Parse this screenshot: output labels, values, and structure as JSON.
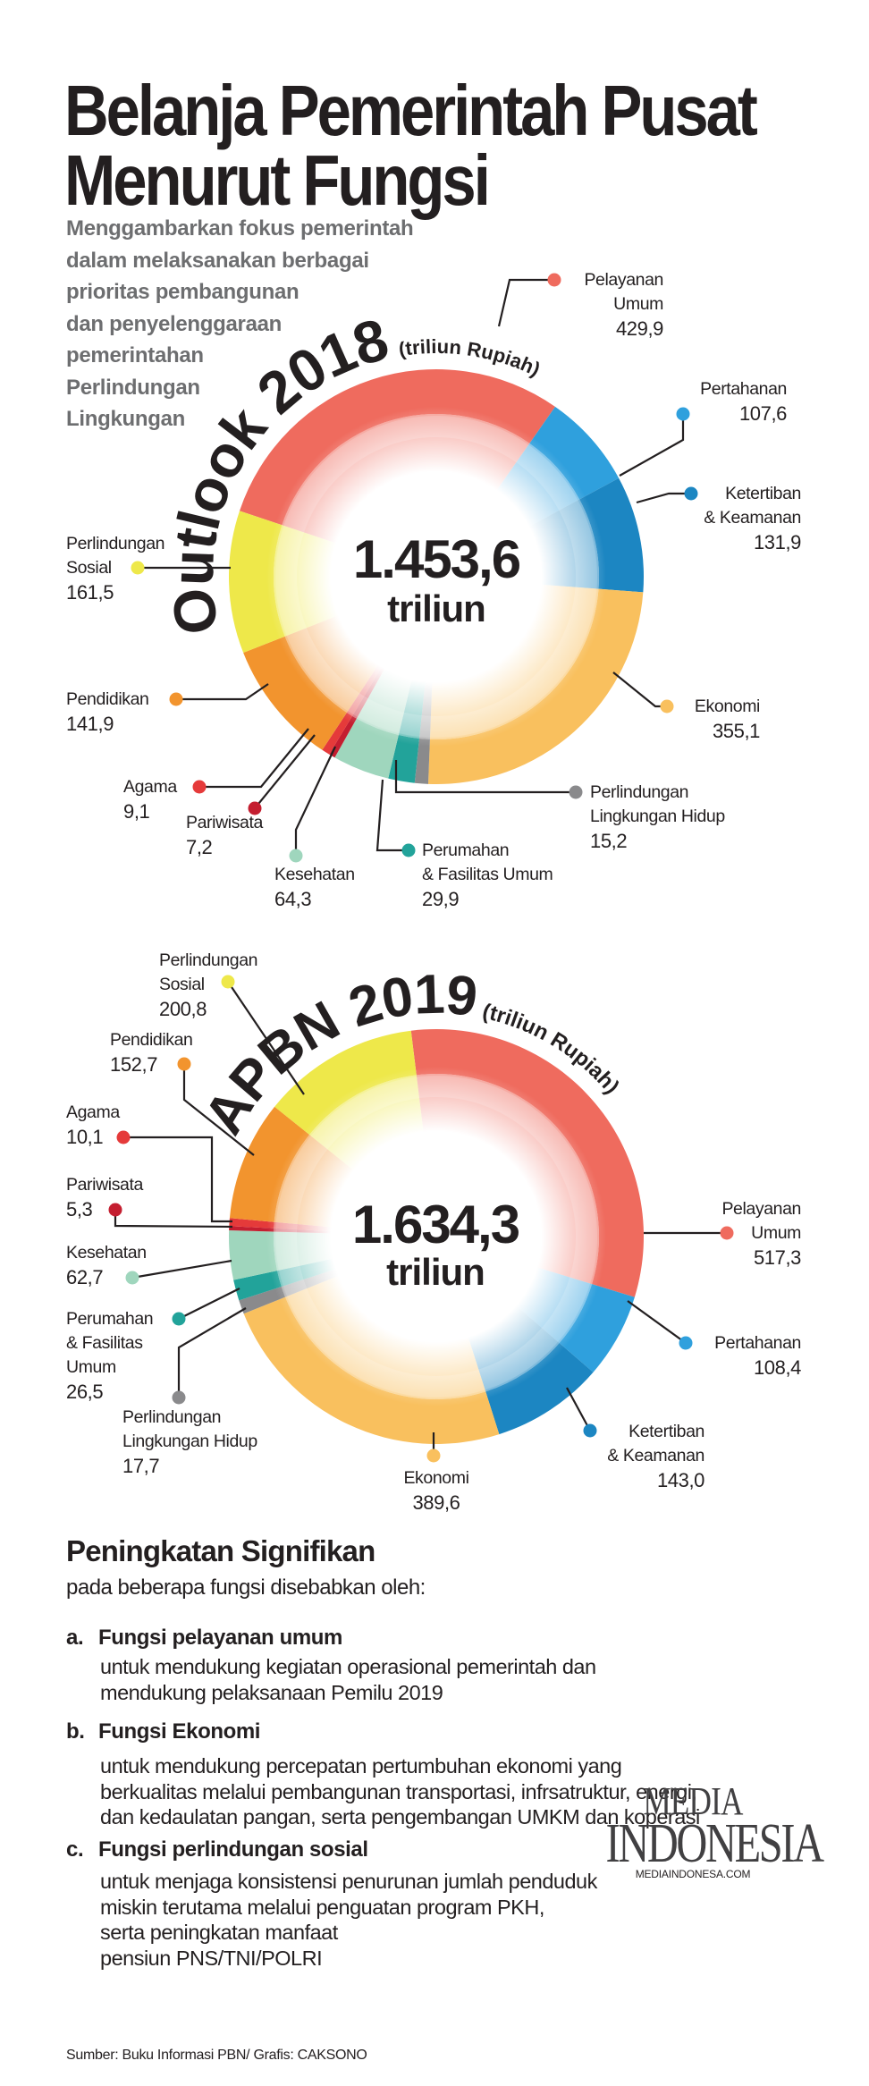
{
  "title": {
    "line1": "Belanja Pemerintah Pusat",
    "line2": "Menurut Fungsi"
  },
  "subtitle": [
    "Menggambarkan fokus pemerintah",
    "dalam melaksanakan berbagai",
    "prioritas pembangunan",
    "dan penyelenggaraan",
    "pemerintahan",
    "Perlindungan",
    "Lingkungan"
  ],
  "chart_data": [
    {
      "type": "pie",
      "title": "Outlook 2018",
      "unit": "(triliun Rupiah)",
      "total_label": "1.453,6",
      "total_unit": "triliun",
      "total": 1453.6,
      "categories": [
        "Pelayanan Umum",
        "Pertahanan",
        "Ketertiban & Keamanan",
        "Ekonomi",
        "Perlindungan Lingkungan Hidup",
        "Perumahan & Fasilitas Umum",
        "Kesehatan",
        "Pariwisata",
        "Agama",
        "Pendidikan",
        "Perlindungan Sosial"
      ],
      "values": [
        429.9,
        107.6,
        131.9,
        355.1,
        15.2,
        29.9,
        64.3,
        7.2,
        9.1,
        141.9,
        161.5
      ],
      "segments": [
        {
          "lines": [
            "Pelayanan",
            "Umum"
          ],
          "value_label": "429,9",
          "color": "#ef6b5e"
        },
        {
          "lines": [
            "Pertahanan"
          ],
          "value_label": "107,6",
          "color": "#2fa0dd"
        },
        {
          "lines": [
            "Ketertiban",
            "& Keamanan"
          ],
          "value_label": "131,9",
          "color": "#1c86c2"
        },
        {
          "lines": [
            "Ekonomi"
          ],
          "value_label": "355,1",
          "color": "#f9c05e"
        },
        {
          "lines": [
            "Perlindungan",
            "Lingkungan Hidup"
          ],
          "value_label": "15,2",
          "color": "#8a8a8c"
        },
        {
          "lines": [
            "Perumahan",
            "& Fasilitas Umum"
          ],
          "value_label": "29,9",
          "color": "#22a39a"
        },
        {
          "lines": [
            "Kesehatan"
          ],
          "value_label": "64,3",
          "color": "#9fd6bd"
        },
        {
          "lines": [
            "Pariwisata"
          ],
          "value_label": "7,2",
          "color": "#c41e30"
        },
        {
          "lines": [
            "Agama"
          ],
          "value_label": "9,1",
          "color": "#e53a3a"
        },
        {
          "lines": [
            "Pendidikan"
          ],
          "value_label": "141,9",
          "color": "#f2942e"
        },
        {
          "lines": [
            "Perlindungan",
            "Sosial"
          ],
          "value_label": "161,5",
          "color": "#eee84a"
        }
      ]
    },
    {
      "type": "pie",
      "title": "APBN 2019",
      "unit": "(triliun Rupiah)",
      "total_label": "1.634,3",
      "total_unit": "triliun",
      "total": 1634.3,
      "categories": [
        "Pelayanan Umum",
        "Pertahanan",
        "Ketertiban & Keamanan",
        "Ekonomi",
        "Perlindungan Lingkungan Hidup",
        "Perumahan & Fasilitas Umum",
        "Kesehatan",
        "Pariwisata",
        "Agama",
        "Pendidikan",
        "Perlindungan Sosial"
      ],
      "values": [
        517.3,
        108.4,
        143.0,
        389.6,
        17.7,
        26.5,
        62.7,
        5.3,
        10.1,
        152.7,
        200.8
      ],
      "segments": [
        {
          "lines": [
            "Pelayanan",
            "Umum"
          ],
          "value_label": "517,3",
          "color": "#ef6b5e"
        },
        {
          "lines": [
            "Pertahanan"
          ],
          "value_label": "108,4",
          "color": "#2fa0dd"
        },
        {
          "lines": [
            "Ketertiban",
            "& Keamanan"
          ],
          "value_label": "143,0",
          "color": "#1c86c2"
        },
        {
          "lines": [
            "Ekonomi"
          ],
          "value_label": "389,6",
          "color": "#f9c05e"
        },
        {
          "lines": [
            "Perlindungan",
            "Lingkungan Hidup"
          ],
          "value_label": "17,7",
          "color": "#8a8a8c"
        },
        {
          "lines": [
            "Perumahan",
            "& Fasilitas",
            "Umum"
          ],
          "value_label": "26,5",
          "color": "#22a39a"
        },
        {
          "lines": [
            "Kesehatan"
          ],
          "value_label": "62,7",
          "color": "#9fd6bd"
        },
        {
          "lines": [
            "Pariwisata"
          ],
          "value_label": "5,3",
          "color": "#c41e30"
        },
        {
          "lines": [
            "Agama"
          ],
          "value_label": "10,1",
          "color": "#e53a3a"
        },
        {
          "lines": [
            "Pendidikan"
          ],
          "value_label": "152,7",
          "color": "#f2942e"
        },
        {
          "lines": [
            "Perlindungan",
            "Sosial"
          ],
          "value_label": "200,8",
          "color": "#eee84a"
        }
      ]
    }
  ],
  "findings": {
    "heading": "Peningkatan Signifikan",
    "intro": "pada beberapa fungsi disebabkan oleh:",
    "items": [
      {
        "letter": "a.",
        "title": "Fungsi pelayanan umum",
        "body": [
          "untuk mendukung kegiatan operasional pemerintah dan",
          "mendukung pelaksanaan Pemilu 2019"
        ]
      },
      {
        "letter": "b.",
        "title": "Fungsi Ekonomi",
        "body": [
          "untuk mendukung percepatan pertumbuhan ekonomi yang",
          "berkualitas melalui pembangunan transportasi, infrsatruktur, energi,",
          "dan kedaulatan pangan, serta pengembangan UMKM dan koperasi"
        ]
      },
      {
        "letter": "c.",
        "title": "Fungsi perlindungan sosial",
        "body": [
          "untuk menjaga konsistensi penurunan jumlah penduduk",
          "miskin terutama melalui penguatan program PKH,",
          "serta peningkatan manfaat",
          "pensiun PNS/TNI/POLRI"
        ]
      }
    ]
  },
  "logo": {
    "line1": "MEDIA",
    "line2": "INDONESIA",
    "url": "MEDIAINDONESA.COM"
  },
  "source": "Sumber: Buku Informasi PBN/ Grafis: CAKSONO"
}
